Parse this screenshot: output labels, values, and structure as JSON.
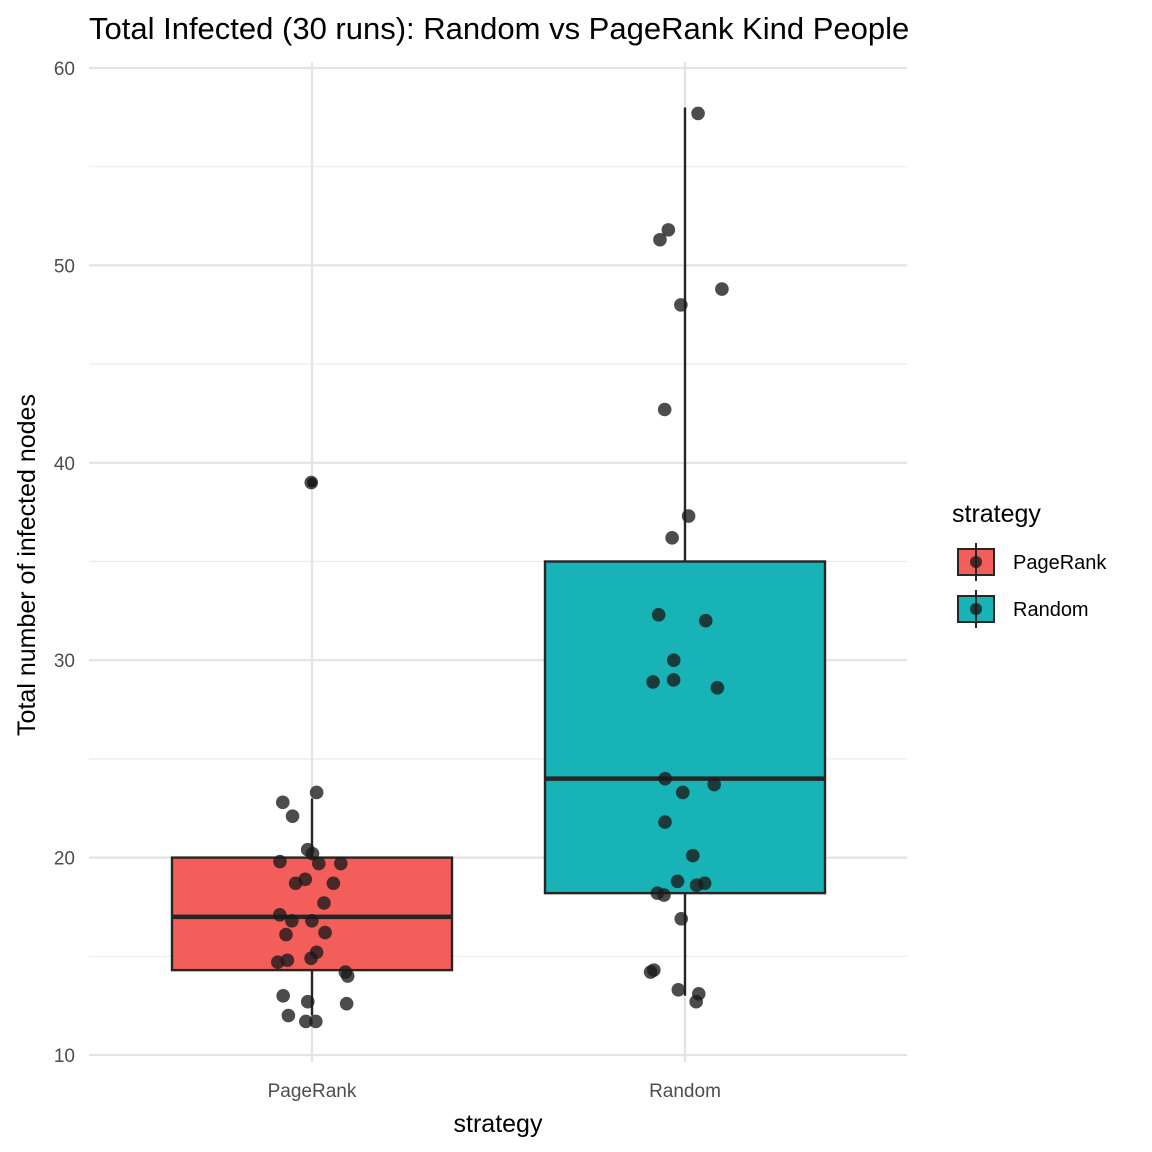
{
  "chart_data": {
    "type": "box",
    "title": "Total Infected (30 runs): Random vs PageRank Kind People",
    "xlabel": "strategy",
    "ylabel": "Total number of infected nodes",
    "ylim": [
      10,
      60
    ],
    "yticks": [
      10,
      20,
      30,
      40,
      50,
      60
    ],
    "grid": true,
    "legend": {
      "title": "strategy",
      "position": "right",
      "entries": [
        "PageRank",
        "Random"
      ]
    },
    "colors": {
      "PageRank": "#F35E5A",
      "Random": "#17B3B7",
      "outline": "#262626",
      "points": "#1a1a1a"
    },
    "categories": [
      "PageRank",
      "Random"
    ],
    "boxes": [
      {
        "name": "PageRank",
        "whisker_low": 12,
        "q1": 14.3,
        "median": 17,
        "q3": 20,
        "whisker_high": 23,
        "outliers": [
          39
        ]
      },
      {
        "name": "Random",
        "whisker_low": 13,
        "q1": 18.2,
        "median": 24,
        "q3": 35,
        "whisker_high": 58,
        "outliers": []
      }
    ],
    "points": {
      "PageRank": [
        39,
        23.3,
        22.8,
        22.1,
        20.4,
        20.2,
        19.8,
        19.7,
        19.7,
        18.9,
        18.7,
        18.7,
        17.7,
        17.1,
        16.8,
        16.8,
        16.2,
        16.1,
        15.2,
        14.9,
        14.8,
        14.7,
        14.2,
        14.0,
        13.0,
        12.7,
        12.6,
        12.0,
        11.7,
        11.7
      ],
      "Random": [
        57.7,
        51.8,
        51.3,
        48.8,
        48.0,
        42.7,
        37.3,
        36.2,
        32.3,
        32.0,
        30.0,
        29.0,
        28.9,
        28.6,
        24.0,
        23.7,
        23.3,
        21.8,
        20.1,
        18.8,
        18.7,
        18.6,
        18.2,
        18.1,
        16.9,
        14.3,
        14.2,
        13.3,
        13.1,
        12.7
      ]
    }
  }
}
